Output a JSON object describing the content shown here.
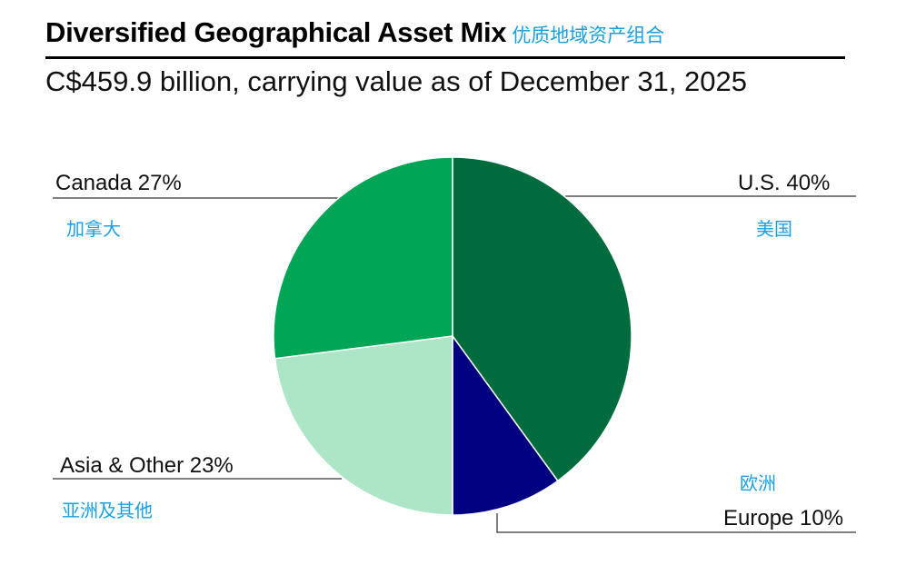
{
  "header": {
    "title": "Diversified Geographical Asset Mix",
    "title_cn": "优质地域资产组合",
    "subtitle": "C$459.9 billion, carrying value as of December 31, 2025"
  },
  "chart_data": {
    "type": "pie",
    "title": "Diversified Geographical Asset Mix",
    "subtitle": "C$459.9 billion, carrying value as of December 31, 2025",
    "slices": [
      {
        "name": "U.S.",
        "name_cn": "美国",
        "value": 40,
        "label": "U.S.  40%",
        "color": "#006b3c"
      },
      {
        "name": "Europe",
        "name_cn": "欧洲",
        "value": 10,
        "label": "Europe 10%",
        "color": "#000080"
      },
      {
        "name": "Asia & Other",
        "name_cn": "亚洲及其他",
        "value": 23,
        "label": "Asia & Other 23%",
        "color": "#ace6c6"
      },
      {
        "name": "Canada",
        "name_cn": "加拿大",
        "value": 27,
        "label": "Canada 27%",
        "color": "#00a556"
      }
    ]
  }
}
